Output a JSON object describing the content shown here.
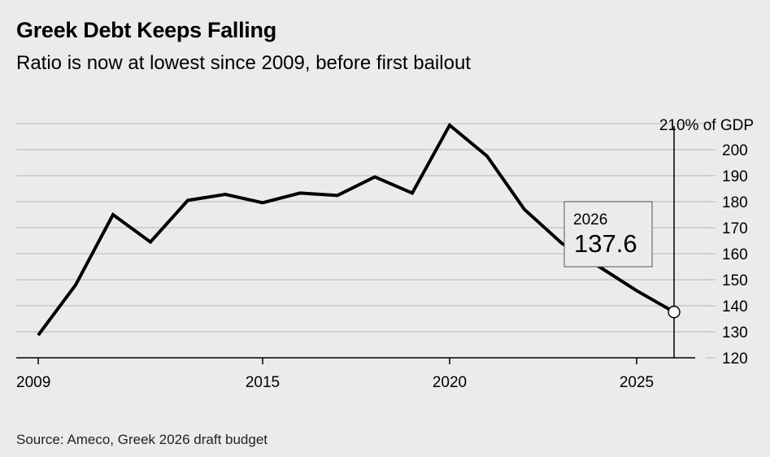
{
  "chart_data": {
    "type": "line",
    "title": "Greek Debt Keeps Falling",
    "subtitle": "Ratio is now at lowest since 2009, before first bailout",
    "source": "Source: Ameco, Greek 2026 draft budget",
    "x": [
      2009,
      2010,
      2011,
      2012,
      2013,
      2014,
      2015,
      2016,
      2017,
      2018,
      2019,
      2020,
      2021,
      2022,
      2023,
      2024,
      2025,
      2026
    ],
    "series": [
      {
        "values": [
          128.7,
          148,
          175,
          164.5,
          180.5,
          182.8,
          179.6,
          183.3,
          182.4,
          189.5,
          183.3,
          209.4,
          197.5,
          177,
          164,
          155,
          145.8,
          137.6
        ]
      }
    ],
    "xlim": [
      2009,
      2026
    ],
    "ylim": [
      120,
      210
    ],
    "x_ticks": [
      "2009",
      "2015",
      "2020",
      "2025"
    ],
    "x_tick_values": [
      2009,
      2015,
      2020,
      2025
    ],
    "y_ticks": [
      200,
      190,
      180,
      170,
      160,
      150,
      140,
      130,
      120
    ],
    "y_top_label": "210% of GDP",
    "grid": true,
    "line_color": "#000000",
    "annotation": {
      "year_label": "2026",
      "value_label": "137.6"
    }
  }
}
